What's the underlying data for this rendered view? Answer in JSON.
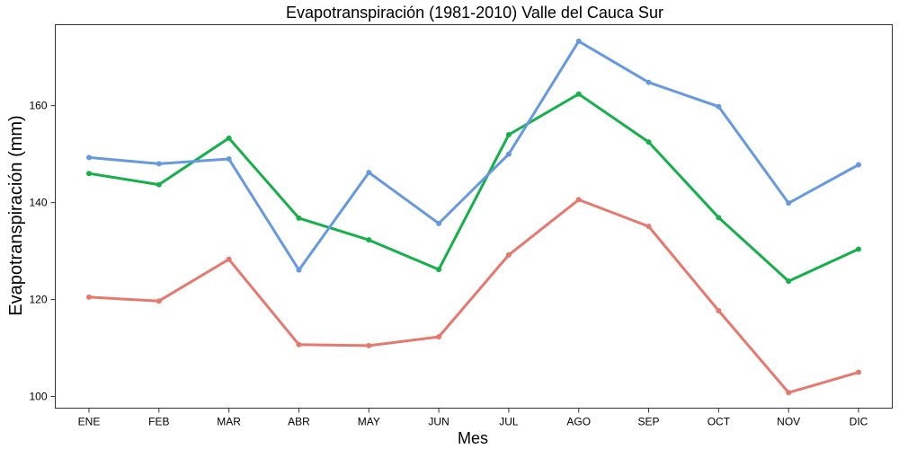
{
  "chart_data": {
    "type": "line",
    "title": "Evapotranspiración (1981-2010)  Valle del Cauca Sur",
    "xlabel": "Mes",
    "ylabel": "Evapotranspiración (mm)",
    "categories": [
      "ENE",
      "FEB",
      "MAR",
      "ABR",
      "MAY",
      "JUN",
      "JUL",
      "AGO",
      "SEP",
      "OCT",
      "NOV",
      "DIC"
    ],
    "ylim": [
      97.6,
      176.7
    ],
    "yticks": [
      100,
      120,
      140,
      160
    ],
    "grid": false,
    "legend": "none",
    "series": [
      {
        "color": "#E7786E",
        "values": [
          120.5,
          119.7,
          128.3,
          110.7,
          110.5,
          112.3,
          129.2,
          140.6,
          135.1,
          117.7,
          100.8,
          105.0
        ]
      },
      {
        "color": "#15B04A",
        "values": [
          146.0,
          143.7,
          153.3,
          136.8,
          132.3,
          126.2,
          154.0,
          162.4,
          152.5,
          136.9,
          123.8,
          130.4
        ]
      },
      {
        "color": "#6699E0",
        "values": [
          149.3,
          148.0,
          149.0,
          126.1,
          146.2,
          135.7,
          150.0,
          173.3,
          164.8,
          159.8,
          139.9,
          147.8
        ]
      }
    ]
  }
}
